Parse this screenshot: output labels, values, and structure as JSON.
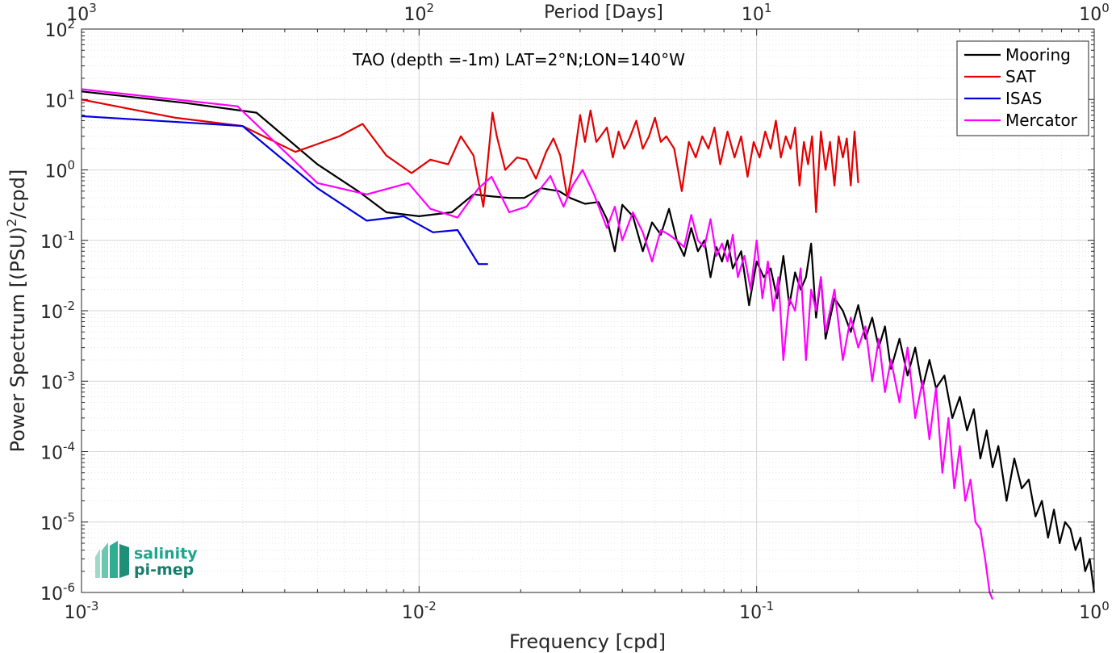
{
  "chart_data": {
    "type": "line",
    "annotation": "TAO (depth =-1m) LAT=2°N;LON=140°W",
    "xlabel": "Frequency [cpd]",
    "ylabel_prefix": "Power Spectrum [(PSU)",
    "ylabel_sup": "2",
    "ylabel_suffix": "/cpd]",
    "top_xlabel": "Period [Days]",
    "x_scale": "log",
    "y_scale": "log",
    "xlim": [
      0.001,
      1
    ],
    "ylim": [
      1e-06,
      100
    ],
    "grid": true,
    "legend_position": "top-right",
    "x_ticks": [
      {
        "base": "10",
        "exp": "-3"
      },
      {
        "base": "10",
        "exp": "-2"
      },
      {
        "base": "10",
        "exp": "-1"
      },
      {
        "base": "10",
        "exp": "0"
      }
    ],
    "top_ticks": [
      {
        "base": "10",
        "exp": "3"
      },
      {
        "base": "10",
        "exp": "2"
      },
      {
        "base": "10",
        "exp": "1"
      },
      {
        "base": "10",
        "exp": "0"
      }
    ],
    "y_ticks": [
      {
        "base": "10",
        "exp": "2"
      },
      {
        "base": "10",
        "exp": "1"
      },
      {
        "base": "10",
        "exp": "0"
      },
      {
        "base": "10",
        "exp": "-1"
      },
      {
        "base": "10",
        "exp": "-2"
      },
      {
        "base": "10",
        "exp": "-3"
      },
      {
        "base": "10",
        "exp": "-4"
      },
      {
        "base": "10",
        "exp": "-5"
      },
      {
        "base": "10",
        "exp": "-6"
      }
    ],
    "series": [
      {
        "name": "Mooring",
        "color": "#000000",
        "x": [
          0.001,
          0.002,
          0.0033,
          0.005,
          0.0066,
          0.008,
          0.01,
          0.0125,
          0.0145,
          0.0165,
          0.0185,
          0.0205,
          0.023,
          0.026,
          0.028,
          0.031,
          0.034,
          0.036,
          0.038,
          0.04,
          0.043,
          0.046,
          0.049,
          0.052,
          0.055,
          0.058,
          0.061,
          0.064,
          0.067,
          0.07,
          0.073,
          0.076,
          0.079,
          0.082,
          0.085,
          0.09,
          0.095,
          0.1,
          0.105,
          0.11,
          0.115,
          0.12,
          0.125,
          0.13,
          0.135,
          0.14,
          0.145,
          0.15,
          0.155,
          0.16,
          0.17,
          0.18,
          0.19,
          0.2,
          0.21,
          0.22,
          0.23,
          0.24,
          0.25,
          0.265,
          0.28,
          0.295,
          0.31,
          0.325,
          0.34,
          0.36,
          0.38,
          0.4,
          0.42,
          0.44,
          0.46,
          0.48,
          0.5,
          0.52,
          0.55,
          0.58,
          0.61,
          0.64,
          0.67,
          0.7,
          0.73,
          0.76,
          0.79,
          0.82,
          0.85,
          0.88,
          0.91,
          0.94,
          0.97,
          1.0
        ],
        "y": [
          13,
          9,
          6.5,
          1.2,
          0.5,
          0.25,
          0.22,
          0.25,
          0.45,
          0.42,
          0.4,
          0.4,
          0.55,
          0.5,
          0.4,
          0.33,
          0.35,
          0.2,
          0.07,
          0.32,
          0.22,
          0.07,
          0.18,
          0.12,
          0.28,
          0.1,
          0.06,
          0.15,
          0.07,
          0.1,
          0.03,
          0.08,
          0.05,
          0.1,
          0.04,
          0.07,
          0.012,
          0.05,
          0.03,
          0.04,
          0.015,
          0.06,
          0.012,
          0.035,
          0.02,
          0.03,
          0.09,
          0.008,
          0.03,
          0.004,
          0.015,
          0.01,
          0.005,
          0.012,
          0.004,
          0.008,
          0.003,
          0.006,
          0.0015,
          0.004,
          0.0012,
          0.003,
          0.0008,
          0.002,
          0.0008,
          0.0012,
          0.0003,
          0.0006,
          0.0002,
          0.0004,
          8e-05,
          0.0002,
          6e-05,
          0.00012,
          2e-05,
          8e-05,
          3e-05,
          4e-05,
          1.2e-05,
          2e-05,
          6e-06,
          1.5e-05,
          5e-06,
          1e-05,
          8e-06,
          4e-06,
          6e-06,
          2e-06,
          3e-06,
          1e-06
        ]
      },
      {
        "name": "SAT",
        "color": "#e30000",
        "x": [
          0.001,
          0.0019,
          0.003,
          0.0043,
          0.0058,
          0.0068,
          0.008,
          0.0095,
          0.0108,
          0.0122,
          0.0133,
          0.0145,
          0.0155,
          0.0165,
          0.017,
          0.018,
          0.0195,
          0.0208,
          0.0222,
          0.0238,
          0.025,
          0.0262,
          0.0275,
          0.0285,
          0.03,
          0.031,
          0.0322,
          0.0335,
          0.0345,
          0.036,
          0.0375,
          0.039,
          0.0405,
          0.042,
          0.044,
          0.046,
          0.048,
          0.05,
          0.052,
          0.054,
          0.057,
          0.06,
          0.063,
          0.066,
          0.069,
          0.072,
          0.075,
          0.078,
          0.082,
          0.086,
          0.09,
          0.094,
          0.098,
          0.102,
          0.106,
          0.11,
          0.114,
          0.118,
          0.122,
          0.126,
          0.13,
          0.134,
          0.138,
          0.142,
          0.146,
          0.15,
          0.155,
          0.16,
          0.165,
          0.17,
          0.175,
          0.18,
          0.185,
          0.19,
          0.195,
          0.2
        ],
        "y": [
          10,
          5.5,
          4.2,
          1.8,
          3.0,
          4.5,
          1.6,
          0.9,
          1.4,
          1.2,
          3.0,
          1.6,
          0.3,
          6.5,
          3.0,
          1.0,
          1.5,
          1.4,
          0.75,
          1.8,
          2.8,
          1.6,
          0.4,
          1.0,
          6.0,
          2.5,
          7.0,
          2.5,
          3.0,
          4.0,
          1.5,
          3.5,
          2.0,
          2.8,
          5.0,
          2.0,
          3.0,
          5.5,
          2.5,
          3.0,
          2.0,
          0.5,
          2.5,
          1.5,
          3.0,
          2.0,
          4.0,
          1.2,
          3.5,
          1.5,
          3.0,
          0.8,
          2.5,
          1.5,
          3.5,
          2.0,
          5.0,
          1.5,
          3.0,
          2.0,
          4.0,
          0.6,
          2.5,
          1.2,
          3.0,
          0.25,
          3.5,
          1.0,
          2.5,
          0.6,
          3.0,
          1.5,
          2.8,
          0.6,
          3.5,
          0.65
        ]
      },
      {
        "name": "ISAS",
        "color": "#0000e0",
        "x": [
          0.001,
          0.003,
          0.005,
          0.007,
          0.009,
          0.011,
          0.013,
          0.015,
          0.016
        ],
        "y": [
          5.8,
          4.2,
          0.55,
          0.19,
          0.22,
          0.13,
          0.14,
          0.046,
          0.046
        ]
      },
      {
        "name": "Mercator",
        "color": "#ff00ff",
        "x": [
          0.001,
          0.0029,
          0.005,
          0.007,
          0.0093,
          0.0108,
          0.013,
          0.015,
          0.0164,
          0.0185,
          0.0208,
          0.0245,
          0.0268,
          0.0285,
          0.0305,
          0.033,
          0.036,
          0.038,
          0.04,
          0.043,
          0.046,
          0.049,
          0.052,
          0.055,
          0.058,
          0.061,
          0.064,
          0.067,
          0.07,
          0.073,
          0.076,
          0.079,
          0.082,
          0.085,
          0.088,
          0.092,
          0.096,
          0.1,
          0.104,
          0.108,
          0.112,
          0.116,
          0.12,
          0.125,
          0.13,
          0.135,
          0.14,
          0.145,
          0.15,
          0.155,
          0.16,
          0.17,
          0.18,
          0.19,
          0.2,
          0.21,
          0.22,
          0.23,
          0.24,
          0.25,
          0.265,
          0.28,
          0.295,
          0.31,
          0.325,
          0.34,
          0.355,
          0.37,
          0.385,
          0.4,
          0.415,
          0.43,
          0.445,
          0.46,
          0.475,
          0.49,
          0.5
        ],
        "y": [
          14,
          8.0,
          0.65,
          0.45,
          0.65,
          0.28,
          0.21,
          0.55,
          0.8,
          0.25,
          0.3,
          0.82,
          0.3,
          0.6,
          1.0,
          0.45,
          0.15,
          0.3,
          0.1,
          0.25,
          0.13,
          0.05,
          0.14,
          0.12,
          0.1,
          0.08,
          0.23,
          0.1,
          0.08,
          0.2,
          0.06,
          0.09,
          0.05,
          0.12,
          0.03,
          0.06,
          0.02,
          0.1,
          0.015,
          0.05,
          0.01,
          0.03,
          0.002,
          0.015,
          0.01,
          0.04,
          0.002,
          0.02,
          0.01,
          0.03,
          0.005,
          0.02,
          0.002,
          0.008,
          0.003,
          0.006,
          0.001,
          0.004,
          0.0007,
          0.002,
          0.0005,
          0.003,
          0.0003,
          0.001,
          0.00015,
          0.0008,
          5e-05,
          0.0003,
          3e-05,
          0.00012,
          2e-05,
          4e-05,
          1e-05,
          8e-06,
          3e-06,
          1e-06,
          8e-07
        ]
      }
    ]
  },
  "logo": {
    "line1": "salinity",
    "line2": "pi-mep"
  }
}
